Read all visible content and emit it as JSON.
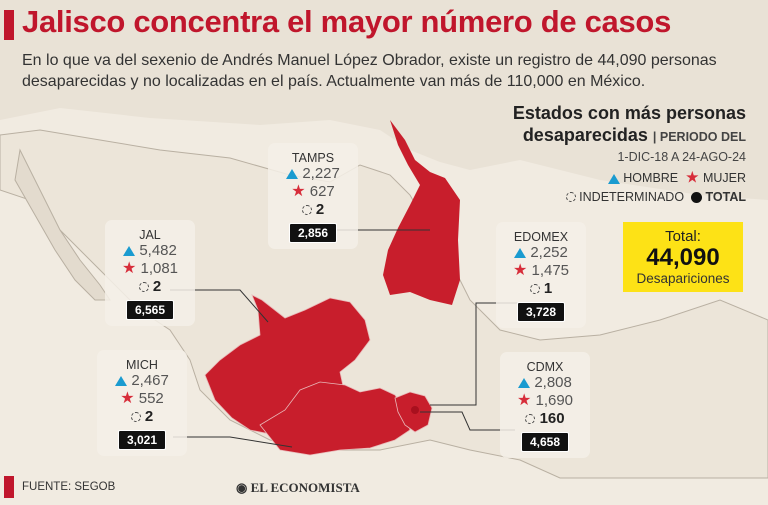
{
  "title": "Jalisco concentra el mayor número de casos",
  "intro": "En lo que va del sexenio de Andrés Manuel López Obrador, existe un registro de 44,090 personas desaparecidas y no localizadas en el país. Actualmente van más de 110,000 en México.",
  "legend": {
    "title_line1": "Estados con más personas",
    "title_line2": "desaparecidas",
    "period_line1": "| PERIODO DEL",
    "period_line2": "1-DIC-18 A 24-AGO-24",
    "hombre": "HOMBRE",
    "mujer": "MUJER",
    "indeterminado": "INDETERMINADO",
    "total": "TOTAL"
  },
  "total_box": {
    "label": "Total:",
    "value": "44,090",
    "caption": "Desapariciones"
  },
  "footer": {
    "source": "FUENTE: SEGOB",
    "brand": "EL ECONOMISTA"
  },
  "colors": {
    "accent": "#c0162c",
    "state_fill": "#c81e2c",
    "hombre": "#1a9bd0",
    "mujer": "#d72d3a",
    "total_box": "#fde216"
  },
  "chart_data": {
    "type": "table",
    "title": "Estados con más personas desaparecidas",
    "columns": [
      "Hombre",
      "Mujer",
      "Indeterminado",
      "Total"
    ],
    "states": [
      {
        "name": "TAMPS",
        "hombre": "2,227",
        "mujer": "627",
        "indeterminado": "2",
        "total": "2,856"
      },
      {
        "name": "JAL",
        "hombre": "5,482",
        "mujer": "1,081",
        "indeterminado": "2",
        "total": "6,565"
      },
      {
        "name": "EDOMEX",
        "hombre": "2,252",
        "mujer": "1,475",
        "indeterminado": "1",
        "total": "3,728"
      },
      {
        "name": "MICH",
        "hombre": "2,467",
        "mujer": "552",
        "indeterminado": "2",
        "total": "3,021"
      },
      {
        "name": "CDMX",
        "hombre": "2,808",
        "mujer": "1,690",
        "indeterminado": "160",
        "total": "4,658"
      }
    ]
  }
}
